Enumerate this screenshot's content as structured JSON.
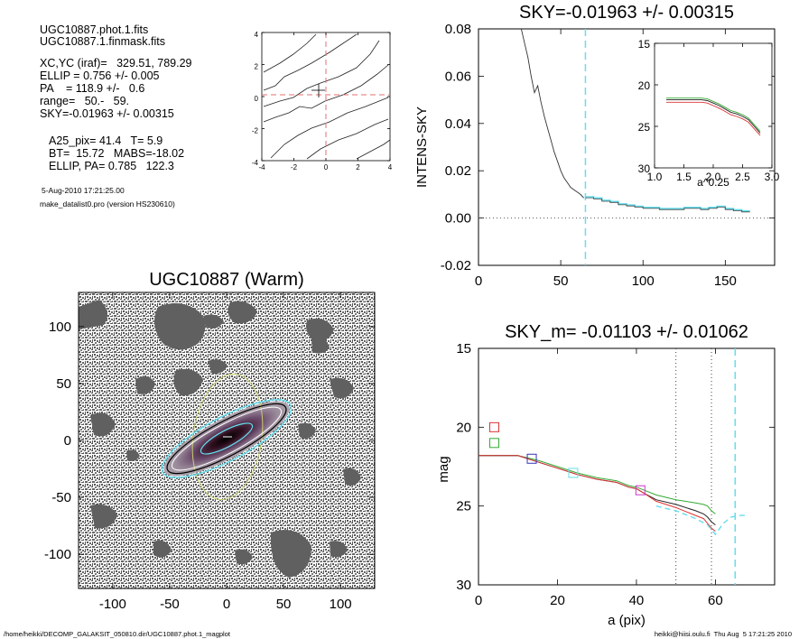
{
  "info_block": {
    "lines": [
      "UGC10887.phot.1.fits",
      "UGC10887.1.finmask.fits",
      "XC,YC (iraf)=   329.51, 789.29",
      "ELLIP = 0.756 +/- 0.005",
      "PA    = 118.9 +/-   0.6",
      "range=   50.-   59.",
      "SKY=-0.01963 +/- 0.00315"
    ],
    "params": [
      "A25_pix= 41.4   T= 5.9",
      "BT=  15.72   MABS=-18.02",
      "ELLIP, PA= 0.785   122.3"
    ],
    "date": "5-Aug-2010 17:21:25.00",
    "program": "make_datalist0.pro (version HS230610)"
  },
  "footer": {
    "left": "/home/heikki/DECOMP_GALAKSIT_050810.dir/UGC10887.phot.1_magplot",
    "right": "heikki@hiisi.oulu.fi  Thu Aug  5 17:21:25 2010"
  },
  "colors": {
    "sky_line": "#66ddee",
    "red": "#dd3333",
    "green": "#33aa33",
    "blue": "#3333bb",
    "magenta": "#cc33cc",
    "dash_red": "#e07070"
  },
  "chart_data": [
    {
      "type": "line",
      "panel": "contour-mini",
      "title": "",
      "xlim": [
        -4,
        4
      ],
      "ylim": [
        -4,
        4
      ],
      "xticks": [
        "-4",
        "-2",
        "0",
        "2",
        "4"
      ],
      "yticks": [
        "-4",
        "-2",
        "0",
        "2",
        "4"
      ]
    },
    {
      "type": "line",
      "panel": "intensity-sky",
      "title": "SKY=-0.01963 +/- 0.00315",
      "xlabel": "",
      "ylabel": "INTENS-SKY",
      "xlim": [
        0,
        180
      ],
      "ylim": [
        -0.02,
        0.08
      ],
      "xticks": [
        "0",
        "50",
        "100",
        "150"
      ],
      "yticks": [
        "-0.02",
        "0.00",
        "0.02",
        "0.04",
        "0.06",
        "0.08"
      ],
      "sky_marker_x": 65,
      "series": [
        {
          "x": [
            26,
            28,
            30,
            32,
            34,
            36,
            38,
            40,
            42,
            44,
            46,
            48,
            50,
            52,
            54,
            56,
            58,
            60,
            62,
            64
          ],
          "y": [
            0.08,
            0.074,
            0.068,
            0.06,
            0.053,
            0.056,
            0.049,
            0.043,
            0.038,
            0.033,
            0.028,
            0.024,
            0.02,
            0.017,
            0.015,
            0.013,
            0.012,
            0.011,
            0.01,
            0.0085
          ]
        },
        {
          "x": [
            65,
            70,
            75,
            80,
            85,
            90,
            95,
            100,
            105,
            110,
            115,
            120,
            125,
            130,
            135,
            140,
            145,
            150,
            155,
            160
          ],
          "y": [
            0.009,
            0.0085,
            0.0075,
            0.007,
            0.006,
            0.0055,
            0.005,
            0.0045,
            0.0045,
            0.004,
            0.004,
            0.004,
            0.0045,
            0.0045,
            0.004,
            0.0045,
            0.005,
            0.004,
            0.0035,
            0.003
          ]
        }
      ],
      "inset": {
        "xlabel": "a^0.25",
        "xlim": [
          1.0,
          3.0
        ],
        "ylim": [
          30,
          15
        ],
        "xticks": [
          "1.0",
          "1.5",
          "2.0",
          "2.5",
          "3.0"
        ],
        "yticks": [
          "15",
          "20",
          "25",
          "30"
        ],
        "x": [
          1.2,
          1.4,
          1.6,
          1.8,
          1.9,
          2.0,
          2.1,
          2.2,
          2.3,
          2.4,
          2.5,
          2.6,
          2.7,
          2.75,
          2.8
        ],
        "y": [
          21.8,
          21.8,
          21.8,
          21.8,
          21.9,
          22.2,
          22.5,
          22.9,
          23.3,
          23.5,
          23.8,
          24.2,
          25.0,
          25.4,
          25.8
        ]
      }
    },
    {
      "type": "heatmap",
      "panel": "galaxy-image",
      "title": "UGC10887 (Warm)",
      "xlim": [
        -130,
        130
      ],
      "ylim": [
        -130,
        130
      ],
      "xticks": [
        "-100",
        "-50",
        "0",
        "50",
        "100"
      ],
      "yticks": [
        "-100",
        "-50",
        "0",
        "50",
        "100"
      ]
    },
    {
      "type": "line",
      "panel": "magnitude-profile",
      "title": "SKY_m= -0.01103 +/- 0.01062",
      "xlabel": "a (pix)",
      "ylabel": "mag",
      "xlim": [
        0,
        75
      ],
      "ylim": [
        30,
        15
      ],
      "xticks": [
        "0",
        "20",
        "40",
        "60"
      ],
      "yticks": [
        "15",
        "20",
        "25",
        "30"
      ],
      "vlines_dotted": [
        50,
        59
      ],
      "vline_dashed": 65,
      "series": [
        {
          "name": "",
          "x": [
            0,
            5,
            10,
            15,
            20,
            25,
            30,
            35,
            38,
            40,
            42,
            45,
            50,
            55,
            57,
            58,
            59,
            60
          ],
          "y": [
            21.8,
            21.8,
            21.8,
            22.1,
            22.5,
            22.9,
            23.2,
            23.4,
            23.7,
            23.8,
            24.0,
            24.3,
            24.6,
            24.8,
            24.9,
            25.0,
            25.3,
            25.5
          ]
        },
        {
          "name": "",
          "x": [
            0,
            5,
            10,
            15,
            20,
            25,
            30,
            35,
            38,
            40,
            42,
            45,
            50,
            55,
            57,
            58,
            59,
            60
          ],
          "y": [
            21.8,
            21.8,
            21.8,
            22.2,
            22.6,
            23.0,
            23.3,
            23.5,
            23.8,
            23.9,
            24.2,
            24.6,
            24.9,
            25.3,
            25.5,
            25.7,
            26.0,
            26.2
          ]
        },
        {
          "name": "",
          "x": [
            0,
            5,
            10,
            15,
            20,
            25,
            30,
            35,
            38,
            40,
            42,
            45,
            50,
            55,
            57,
            58,
            59,
            60
          ],
          "y": [
            21.8,
            21.8,
            21.8,
            22.2,
            22.6,
            23.0,
            23.3,
            23.5,
            23.8,
            23.9,
            24.2,
            24.7,
            25.1,
            25.6,
            25.8,
            26.1,
            26.4,
            26.6
          ]
        }
      ],
      "sky_dash": {
        "x": [
          45,
          50,
          55,
          58,
          60,
          62,
          64,
          66,
          68
        ],
        "y": [
          25.0,
          25.3,
          25.8,
          26.2,
          26.8,
          26.1,
          25.7,
          25.6,
          25.6
        ]
      },
      "markers": [
        {
          "x": 4,
          "y": 20.0,
          "color": "#dd3333"
        },
        {
          "x": 4,
          "y": 21.0,
          "color": "#33aa33"
        },
        {
          "x": 13.5,
          "y": 22.0,
          "color": "#3333bb"
        },
        {
          "x": 24,
          "y": 22.9,
          "color": "#66ddee"
        },
        {
          "x": 41,
          "y": 24.0,
          "color": "#cc33cc"
        }
      ]
    }
  ]
}
